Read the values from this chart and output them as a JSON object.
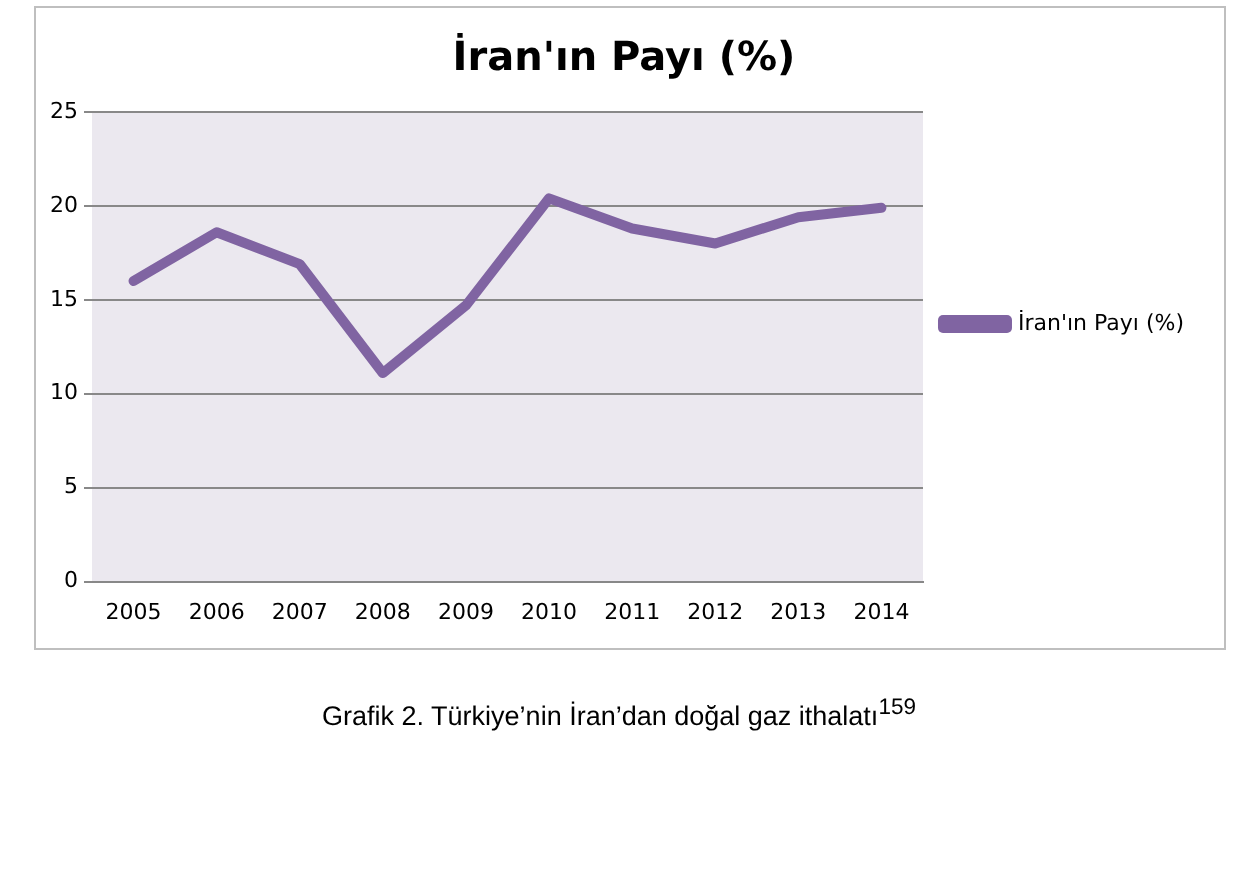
{
  "chart_data": {
    "type": "line",
    "title": "İran'ın Payı (%)",
    "categories": [
      "2005",
      "2006",
      "2007",
      "2008",
      "2009",
      "2010",
      "2011",
      "2012",
      "2013",
      "2014"
    ],
    "series": [
      {
        "name": "İran'ın Payı (%)",
        "color": "#8064a2",
        "values": [
          16.0,
          18.6,
          16.9,
          11.1,
          14.7,
          20.4,
          18.8,
          18.0,
          19.4,
          19.9
        ]
      }
    ],
    "ylim": [
      0,
      25
    ],
    "yticks": [
      0,
      5,
      10,
      15,
      20,
      25
    ],
    "grid": "y",
    "legend": "right",
    "marker": "none",
    "line_style": "solid",
    "annotations": [
      "Grafik 2. Türkiye’nin İran’dan doğal gaz ithalatı$^{159}$"
    ]
  }
}
